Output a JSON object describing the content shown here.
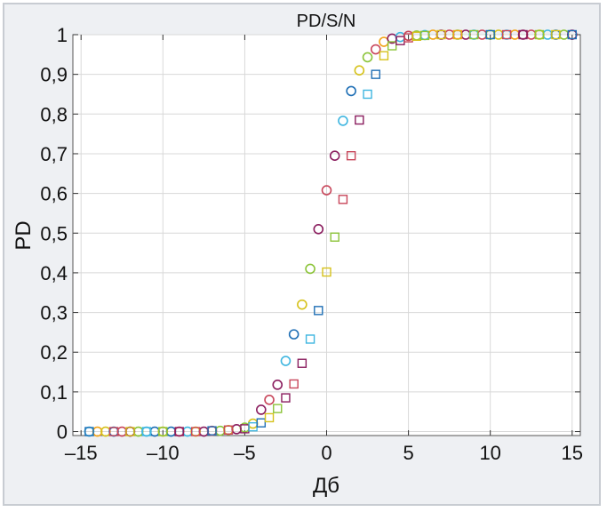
{
  "chart_data": {
    "type": "scatter",
    "title": "PD/S/N",
    "xlabel": "Дб",
    "ylabel": "PD",
    "xlim": [
      -15.5,
      15.5
    ],
    "ylim": [
      -0.01,
      1.0
    ],
    "x_ticks": [
      -15,
      -10,
      -5,
      0,
      5,
      10,
      15
    ],
    "x_tick_labels": [
      "–15",
      "–10",
      "–5",
      "0",
      "5",
      "10",
      "15"
    ],
    "y_ticks": [
      0,
      0.1,
      0.2,
      0.3,
      0.4,
      0.5,
      0.6,
      0.7,
      0.8,
      0.9,
      1
    ],
    "y_tick_labels": [
      "0",
      "0,1",
      "0,2",
      "0,3",
      "0,4",
      "0,5",
      "0,6",
      "0,7",
      "0,8",
      "0,9",
      "1"
    ],
    "grid": true,
    "colors": {
      "blue": "#1f6fb5",
      "cyan": "#3fb6e0",
      "orange": "#f2a41a",
      "yellow": "#d6c21c",
      "green": "#8cc43a",
      "red": "#c8465a",
      "purple": "#8a1d5e",
      "grid": "#d8d8d8",
      "frame_bg": "#eef0f3",
      "frame_border": "#c8ccd2"
    },
    "series": [
      {
        "marker": "circle",
        "points": [
          {
            "x": -14.5,
            "y": 0,
            "color": "cyan"
          },
          {
            "x": -14,
            "y": 0,
            "color": "orange"
          },
          {
            "x": -13.5,
            "y": 0,
            "color": "yellow"
          },
          {
            "x": -13,
            "y": 0,
            "color": "blue"
          },
          {
            "x": -12.5,
            "y": 0,
            "color": "red"
          },
          {
            "x": -12,
            "y": 0,
            "color": "purple"
          },
          {
            "x": -11.5,
            "y": 0,
            "color": "green"
          },
          {
            "x": -11,
            "y": 0,
            "color": "cyan"
          },
          {
            "x": -10.5,
            "y": 0,
            "color": "blue"
          },
          {
            "x": -10,
            "y": 0,
            "color": "yellow"
          },
          {
            "x": -9.5,
            "y": 0,
            "color": "blue"
          },
          {
            "x": -9,
            "y": 0,
            "color": "red"
          },
          {
            "x": -8.5,
            "y": 0,
            "color": "cyan"
          },
          {
            "x": -8,
            "y": 0,
            "color": "yellow"
          },
          {
            "x": -7.5,
            "y": 0,
            "color": "purple"
          },
          {
            "x": -7,
            "y": 0.002,
            "color": "red"
          },
          {
            "x": -6.5,
            "y": 0.002,
            "color": "green"
          },
          {
            "x": -6,
            "y": 0.004,
            "color": "yellow"
          },
          {
            "x": -5.5,
            "y": 0.006,
            "color": "purple"
          },
          {
            "x": -5,
            "y": 0.01,
            "color": "green"
          },
          {
            "x": -4.5,
            "y": 0.02,
            "color": "yellow"
          },
          {
            "x": -4,
            "y": 0.055,
            "color": "purple"
          },
          {
            "x": -3.5,
            "y": 0.08,
            "color": "red"
          },
          {
            "x": -3,
            "y": 0.118,
            "color": "purple"
          },
          {
            "x": -2.5,
            "y": 0.178,
            "color": "cyan"
          },
          {
            "x": -2,
            "y": 0.245,
            "color": "blue"
          },
          {
            "x": -1.5,
            "y": 0.32,
            "color": "yellow"
          },
          {
            "x": -1,
            "y": 0.41,
            "color": "green"
          },
          {
            "x": -0.5,
            "y": 0.51,
            "color": "purple"
          },
          {
            "x": 0,
            "y": 0.608,
            "color": "red"
          },
          {
            "x": 0.5,
            "y": 0.695,
            "color": "purple"
          },
          {
            "x": 1,
            "y": 0.783,
            "color": "cyan"
          },
          {
            "x": 1.5,
            "y": 0.858,
            "color": "blue"
          },
          {
            "x": 2,
            "y": 0.91,
            "color": "yellow"
          },
          {
            "x": 2.5,
            "y": 0.943,
            "color": "green"
          },
          {
            "x": 3,
            "y": 0.963,
            "color": "red"
          },
          {
            "x": 3.5,
            "y": 0.982,
            "color": "orange"
          },
          {
            "x": 4,
            "y": 0.99,
            "color": "purple"
          },
          {
            "x": 4.5,
            "y": 0.994,
            "color": "cyan"
          },
          {
            "x": 5,
            "y": 0.997,
            "color": "red"
          },
          {
            "x": 5.5,
            "y": 0.998,
            "color": "green"
          },
          {
            "x": 6,
            "y": 0.999,
            "color": "cyan"
          },
          {
            "x": 6.5,
            "y": 1,
            "color": "orange"
          },
          {
            "x": 7,
            "y": 1,
            "color": "purple"
          },
          {
            "x": 7.5,
            "y": 1,
            "color": "red"
          },
          {
            "x": 8,
            "y": 1,
            "color": "green"
          },
          {
            "x": 8.5,
            "y": 1,
            "color": "purple"
          },
          {
            "x": 9,
            "y": 1,
            "color": "cyan"
          },
          {
            "x": 9.5,
            "y": 1,
            "color": "red"
          },
          {
            "x": 10,
            "y": 1,
            "color": "green"
          },
          {
            "x": 10.5,
            "y": 1,
            "color": "yellow"
          },
          {
            "x": 11,
            "y": 1,
            "color": "cyan"
          },
          {
            "x": 11.5,
            "y": 1,
            "color": "orange"
          },
          {
            "x": 12,
            "y": 1,
            "color": "purple"
          },
          {
            "x": 12.5,
            "y": 1,
            "color": "red"
          },
          {
            "x": 13,
            "y": 1,
            "color": "yellow"
          },
          {
            "x": 13.5,
            "y": 1,
            "color": "cyan"
          },
          {
            "x": 14,
            "y": 1,
            "color": "blue"
          },
          {
            "x": 14.5,
            "y": 1,
            "color": "green"
          },
          {
            "x": 15,
            "y": 1,
            "color": "purple"
          }
        ]
      },
      {
        "marker": "square",
        "points": [
          {
            "x": -14.5,
            "y": 0,
            "color": "blue"
          },
          {
            "x": -13,
            "y": 0,
            "color": "red"
          },
          {
            "x": -12,
            "y": 0,
            "color": "yellow"
          },
          {
            "x": -11,
            "y": 0,
            "color": "cyan"
          },
          {
            "x": -10,
            "y": 0,
            "color": "green"
          },
          {
            "x": -9,
            "y": 0,
            "color": "purple"
          },
          {
            "x": -8,
            "y": 0,
            "color": "red"
          },
          {
            "x": -7,
            "y": 0.002,
            "color": "blue"
          },
          {
            "x": -6,
            "y": 0.004,
            "color": "red"
          },
          {
            "x": -5,
            "y": 0.007,
            "color": "purple"
          },
          {
            "x": -4.5,
            "y": 0.012,
            "color": "cyan"
          },
          {
            "x": -4,
            "y": 0.022,
            "color": "blue"
          },
          {
            "x": -3.5,
            "y": 0.035,
            "color": "yellow"
          },
          {
            "x": -3,
            "y": 0.058,
            "color": "green"
          },
          {
            "x": -2.5,
            "y": 0.085,
            "color": "purple"
          },
          {
            "x": -2,
            "y": 0.12,
            "color": "red"
          },
          {
            "x": -1.5,
            "y": 0.172,
            "color": "purple"
          },
          {
            "x": -1,
            "y": 0.233,
            "color": "cyan"
          },
          {
            "x": -0.5,
            "y": 0.305,
            "color": "blue"
          },
          {
            "x": 0,
            "y": 0.402,
            "color": "yellow"
          },
          {
            "x": 0.5,
            "y": 0.49,
            "color": "green"
          },
          {
            "x": 1,
            "y": 0.585,
            "color": "red"
          },
          {
            "x": 1.5,
            "y": 0.695,
            "color": "red"
          },
          {
            "x": 2,
            "y": 0.785,
            "color": "purple"
          },
          {
            "x": 2.5,
            "y": 0.85,
            "color": "cyan"
          },
          {
            "x": 3,
            "y": 0.9,
            "color": "blue"
          },
          {
            "x": 3.5,
            "y": 0.947,
            "color": "yellow"
          },
          {
            "x": 4,
            "y": 0.972,
            "color": "green"
          },
          {
            "x": 4.5,
            "y": 0.985,
            "color": "purple"
          },
          {
            "x": 5,
            "y": 0.992,
            "color": "red"
          },
          {
            "x": 5.5,
            "y": 0.996,
            "color": "yellow"
          },
          {
            "x": 6,
            "y": 0.998,
            "color": "green"
          },
          {
            "x": 7,
            "y": 1,
            "color": "yellow"
          },
          {
            "x": 8,
            "y": 1,
            "color": "orange"
          },
          {
            "x": 9,
            "y": 1,
            "color": "green"
          },
          {
            "x": 10,
            "y": 1,
            "color": "blue"
          },
          {
            "x": 11,
            "y": 1,
            "color": "red"
          },
          {
            "x": 12,
            "y": 1,
            "color": "purple"
          },
          {
            "x": 13,
            "y": 1,
            "color": "green"
          },
          {
            "x": 14,
            "y": 1,
            "color": "yellow"
          },
          {
            "x": 15,
            "y": 1,
            "color": "blue"
          }
        ]
      }
    ]
  }
}
